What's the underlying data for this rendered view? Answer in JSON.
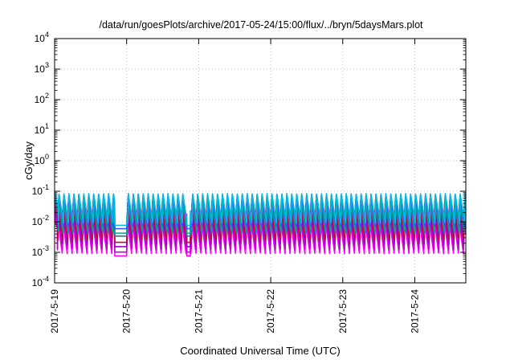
{
  "chart_data": {
    "type": "line",
    "title": "/data/run/goesPlots/archive/2017-05-24/15:00/flux/../bryn/5daysMars.plot",
    "xlabel": "Coordinated Universal Time (UTC)",
    "ylabel": "cGy/day",
    "y_scale": "log",
    "ylim": [
      0.0001,
      10000
    ],
    "xlim": [
      "2017-05-19T00:00",
      "2017-05-24T17:00"
    ],
    "grid": true,
    "legend": "none",
    "y_ticks": [
      {
        "base": "10",
        "exp": "-4"
      },
      {
        "base": "10",
        "exp": "-3"
      },
      {
        "base": "10",
        "exp": "-2"
      },
      {
        "base": "10",
        "exp": "-1"
      },
      {
        "base": "10",
        "exp": "0"
      },
      {
        "base": "10",
        "exp": "1"
      },
      {
        "base": "10",
        "exp": "2"
      },
      {
        "base": "10",
        "exp": "3"
      },
      {
        "base": "10",
        "exp": "4"
      }
    ],
    "x_ticks": [
      "2017-5-19",
      "2017-5-20",
      "2017-5-21",
      "2017-5-22",
      "2017-5-23",
      "2017-5-24"
    ],
    "pattern": {
      "cycle_hours": 1.65,
      "start_hour": 0.9,
      "decay_per_cycle": 10,
      "note_free": true
    },
    "series": [
      {
        "color": "#ff00ff",
        "peak": 0.012,
        "floor": 0.0009
      },
      {
        "color": "#cc00cc",
        "peak": 0.018,
        "floor": 0.0012
      },
      {
        "color": "#9900cc",
        "peak": 0.025,
        "floor": 0.0018
      },
      {
        "color": "#cc0033",
        "peak": 0.04,
        "floor": 0.0025
      },
      {
        "color": "#2f6f9f",
        "peak": 0.05,
        "floor": 0.004
      },
      {
        "color": "#00aa88",
        "peak": 0.06,
        "floor": 0.005
      },
      {
        "color": "#3355ff",
        "peak": 0.075,
        "floor": 0.007
      },
      {
        "color": "#00bbdd",
        "peak": 0.085,
        "floor": 0.009
      }
    ],
    "gap_hours": [
      [
        20.0,
        24.0
      ],
      [
        44.0,
        45.2
      ]
    ]
  }
}
